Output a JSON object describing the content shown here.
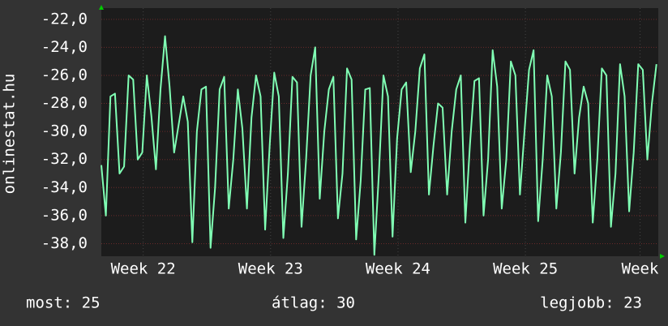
{
  "chart_data": {
    "type": "line",
    "y_label": "onlinestat.hu",
    "x": [
      0,
      0.25,
      0.5,
      0.75,
      1,
      1.25,
      1.5,
      1.75,
      2,
      2.25,
      2.5,
      2.75,
      3,
      3.25,
      3.5,
      3.75,
      4,
      4.25,
      4.5,
      4.75,
      5,
      5.25,
      5.5,
      5.75,
      6,
      6.25,
      6.5,
      6.75,
      7,
      7.25,
      7.5,
      7.75,
      8,
      8.25,
      8.5,
      8.75,
      9,
      9.25,
      9.5,
      9.75,
      10,
      10.25,
      10.5,
      10.75,
      11,
      11.25,
      11.5,
      11.75,
      12,
      12.25,
      12.5,
      12.75,
      13,
      13.25,
      13.5,
      13.75,
      14,
      14.25,
      14.5,
      14.75,
      15,
      15.25,
      15.5,
      15.75,
      16,
      16.25,
      16.5,
      16.75,
      17,
      17.25,
      17.5,
      17.75,
      18,
      18.25,
      18.5,
      18.75,
      19,
      19.25,
      19.5,
      19.75,
      20,
      20.25,
      20.5,
      20.75,
      21,
      21.25,
      21.5,
      21.75,
      22,
      22.25,
      22.5,
      22.75,
      23,
      23.25,
      23.5,
      23.75,
      24,
      24.25,
      24.5,
      24.75,
      25,
      25.25,
      25.5,
      25.75,
      26,
      26.25,
      26.5,
      26.75,
      27,
      27.25,
      27.5,
      27.75,
      28,
      28.25,
      28.5,
      28.75,
      29,
      29.25,
      29.5,
      29.75,
      30,
      30.25,
      30.5
    ],
    "series": [
      {
        "color": "#80ffb4",
        "values": [
          -32.4,
          -36.0,
          -27.5,
          -27.3,
          -33.0,
          -32.5,
          -26.0,
          -26.3,
          -32.0,
          -31.5,
          -26.0,
          -28.9,
          -32.7,
          -27.0,
          -23.2,
          -26.8,
          -31.5,
          -29.5,
          -27.5,
          -29.3,
          -37.9,
          -30.0,
          -27.0,
          -26.8,
          -38.3,
          -34.0,
          -27.0,
          -26.1,
          -35.5,
          -32.0,
          -27.0,
          -29.8,
          -35.5,
          -29.0,
          -26.0,
          -27.5,
          -37.0,
          -31.0,
          -25.8,
          -27.5,
          -37.6,
          -33.0,
          -26.1,
          -26.5,
          -36.8,
          -32.0,
          -26.0,
          -24.0,
          -34.8,
          -30.0,
          -27.0,
          -26.1,
          -36.2,
          -33.0,
          -25.5,
          -26.3,
          -37.7,
          -33.5,
          -27.0,
          -26.9,
          -38.8,
          -33.0,
          -26.0,
          -27.5,
          -37.5,
          -30.5,
          -27.0,
          -26.5,
          -32.9,
          -30.0,
          -25.5,
          -24.5,
          -34.5,
          -31.0,
          -28.0,
          -28.3,
          -34.5,
          -30.0,
          -27.0,
          -26.0,
          -36.5,
          -31.0,
          -26.4,
          -26.2,
          -36.0,
          -32.0,
          -24.2,
          -26.8,
          -35.5,
          -32.0,
          -25.0,
          -26.0,
          -34.5,
          -30.0,
          -25.6,
          -24.2,
          -36.4,
          -32.0,
          -26.0,
          -27.5,
          -35.5,
          -31.5,
          -25.0,
          -25.6,
          -33.0,
          -29.0,
          -26.8,
          -28.0,
          -36.5,
          -32.0,
          -25.5,
          -26.0,
          -36.8,
          -33.0,
          -25.2,
          -27.5,
          -35.7,
          -31.5,
          -25.2,
          -25.6,
          -32.0,
          -28.0,
          -25.2
        ]
      }
    ],
    "xlim": [
      0,
      30.6
    ],
    "xticks": [
      {
        "value": 2.3,
        "label": "Week 22"
      },
      {
        "value": 9.3,
        "label": "Week 23"
      },
      {
        "value": 16.3,
        "label": "Week 24"
      },
      {
        "value": 23.3,
        "label": "Week 25"
      },
      {
        "value": 29.6,
        "label": "Week"
      }
    ],
    "ylim": [
      -38.9,
      -21.2
    ],
    "yticks": [
      {
        "value": -22,
        "label": "-22,0"
      },
      {
        "value": -24,
        "label": "-24,0"
      },
      {
        "value": -26,
        "label": "-26,0"
      },
      {
        "value": -28,
        "label": "-28,0"
      },
      {
        "value": -30,
        "label": "-30,0"
      },
      {
        "value": -32,
        "label": "-32,0"
      },
      {
        "value": -34,
        "label": "-34,0"
      },
      {
        "value": -36,
        "label": "-36,0"
      },
      {
        "value": -38,
        "label": "-38,0"
      }
    ],
    "grid": true,
    "footer": [
      "most: 25",
      "átlag: 30",
      "legjobb: 23"
    ]
  }
}
